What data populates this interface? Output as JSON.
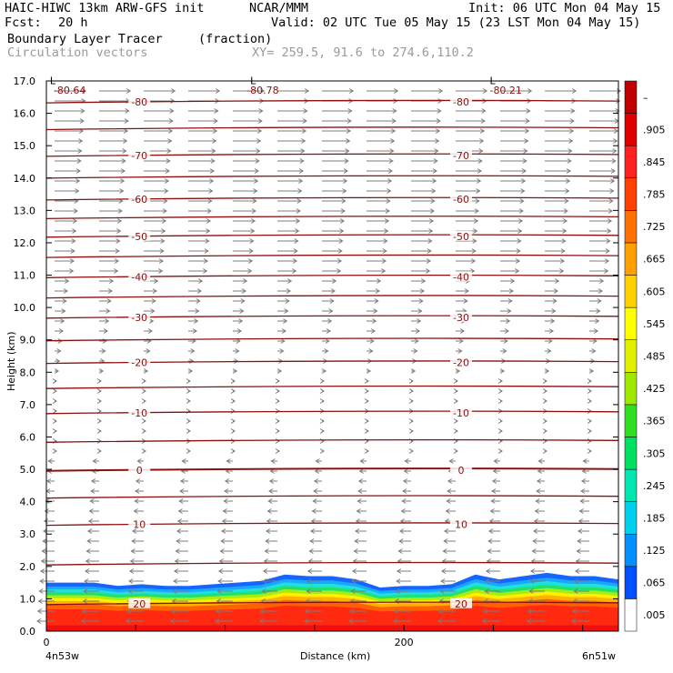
{
  "header": {
    "title": "HAIC-HIWC 13km ARW-GFS init",
    "org": "NCAR/MMM",
    "init": "Init: 06 UTC Mon 04 May 15",
    "fcst_label": "Fcst:",
    "fcst_value": "20 h",
    "valid": "Valid: 02 UTC Tue 05 May 15 (23 LST Mon 04 May 15)",
    "field1_name": "Boundary Layer Tracer",
    "field1_units": "(fraction)",
    "field2_name": "Circulation vectors",
    "xy": "XY= 259.5, 91.6 to 274.6,110.2"
  },
  "chart_data": {
    "type": "heatmap",
    "xlabel": "Distance (km)",
    "ylabel": "Height (km)",
    "xlim": [
      0,
      320
    ],
    "ylim": [
      0,
      17
    ],
    "x_ticks": [
      0,
      200
    ],
    "y_ticks": [
      "0.0",
      "1.0",
      "2.0",
      "3.0",
      "4.0",
      "5.0",
      "6.0",
      "7.0",
      "8.0",
      "9.0",
      "10.0",
      "11.0",
      "12.0",
      "13.0",
      "14.0",
      "15.0",
      "16.0",
      "17.0"
    ],
    "x_end_labels": {
      "left": "4n53w",
      "right": "6n51w"
    },
    "colorbar": {
      "labels": [
        ".005",
        ".065",
        ".125",
        ".185",
        ".245",
        ".305",
        ".365",
        ".425",
        ".485",
        ".545",
        ".605",
        ".665",
        ".725",
        ".785",
        ".845",
        ".905",
        "–"
      ],
      "colors": [
        "#ffffff",
        "#0050ff",
        "#0090ff",
        "#00d0f0",
        "#00e8b0",
        "#00e060",
        "#30e020",
        "#a0e800",
        "#e0f000",
        "#ffff00",
        "#ffd000",
        "#ffa000",
        "#ff7000",
        "#ff4000",
        "#ff2020",
        "#e00000",
        "#c00000"
      ]
    },
    "tracer_top_km": [
      1.5,
      1.5,
      1.5,
      1.4,
      1.45,
      1.4,
      1.4,
      1.45,
      1.5,
      1.55,
      1.75,
      1.7,
      1.7,
      1.6,
      1.35,
      1.4,
      1.4,
      1.45,
      1.75,
      1.6,
      1.7,
      1.8,
      1.7,
      1.7,
      1.6
    ],
    "temperature_contours": [
      {
        "level": "20",
        "height_km": 0.85
      },
      {
        "level": "10",
        "height_km": 3.3
      },
      {
        "level": "0",
        "height_km": 4.98
      },
      {
        "level": "-10",
        "height_km": 6.75
      },
      {
        "level": "-20",
        "height_km": 8.3
      },
      {
        "level": "-30",
        "height_km": 9.7
      },
      {
        "level": "-40",
        "height_km": 10.95
      },
      {
        "level": "-50",
        "height_km": 12.2
      },
      {
        "level": "-60",
        "height_km": 13.35
      },
      {
        "level": "-70",
        "height_km": 14.7
      },
      {
        "level": "-80",
        "height_km": 16.35
      }
    ],
    "extra_labels": [
      {
        "text": "-80.64",
        "x_km": 4,
        "height_km": 16.6
      },
      {
        "text": "-80.78",
        "x_km": 112,
        "height_km": 16.6
      },
      {
        "text": "-80.21",
        "x_km": 248,
        "height_km": 16.6
      },
      {
        "text": "L",
        "x_km": 2,
        "height_km": 16.9
      },
      {
        "text": "L",
        "x_km": 114,
        "height_km": 16.9
      },
      {
        "text": "L",
        "x_km": 248,
        "height_km": 16.9
      }
    ]
  }
}
